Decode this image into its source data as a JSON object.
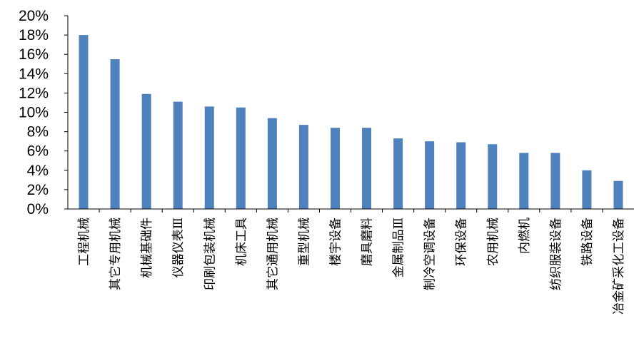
{
  "chart_data": {
    "type": "bar",
    "title": "",
    "xlabel": "",
    "ylabel": "",
    "ylim": [
      0,
      20
    ],
    "yticks": [
      "0%",
      "2%",
      "4%",
      "6%",
      "8%",
      "10%",
      "12%",
      "14%",
      "16%",
      "18%",
      "20%"
    ],
    "grid": false,
    "legend": "none",
    "bar_color": "#4f81bd",
    "categories": [
      "工程机械",
      "其它专用机械",
      "机械基础件",
      "仪器仪表Ⅲ",
      "印刷包装机械",
      "机床工具",
      "其它通用机械",
      "重型机械",
      "楼宇设备",
      "磨具磨料",
      "金属制品Ⅲ",
      "制冷空调设备",
      "环保设备",
      "农用机械",
      "内燃机",
      "纺织服装设备",
      "铁路设备",
      "冶金矿采化工设备"
    ],
    "values": [
      18.0,
      15.5,
      11.9,
      11.1,
      10.6,
      10.5,
      9.4,
      8.7,
      8.4,
      8.4,
      7.3,
      7.0,
      6.9,
      6.7,
      5.8,
      5.8,
      4.0,
      2.9
    ]
  }
}
